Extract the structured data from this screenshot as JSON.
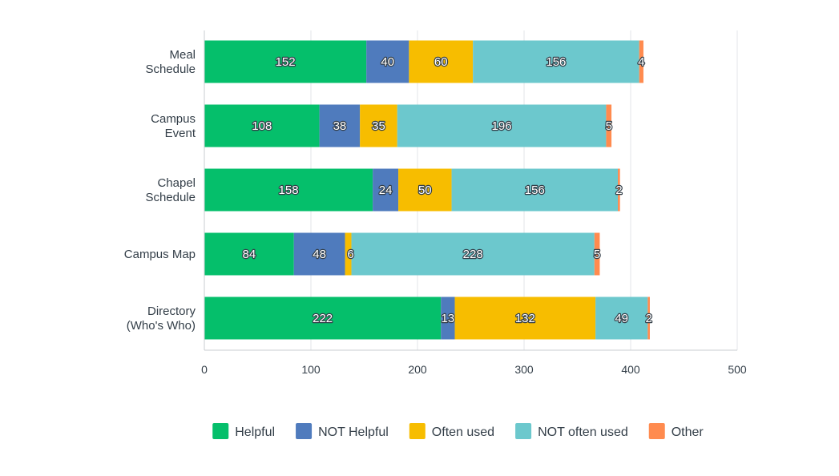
{
  "chart_data": {
    "type": "bar",
    "orientation": "horizontal",
    "stacked": true,
    "categories": [
      [
        "Meal",
        "Schedule"
      ],
      [
        "Campus",
        "Event"
      ],
      [
        "Chapel",
        "Schedule"
      ],
      [
        "Campus Map"
      ],
      [
        "Directory",
        "(Who's Who)"
      ]
    ],
    "series": [
      {
        "name": "Helpful",
        "color": "#05bf6b",
        "values": [
          152,
          108,
          158,
          84,
          222
        ]
      },
      {
        "name": "NOT Helpful",
        "color": "#4f7bbd",
        "values": [
          40,
          38,
          24,
          48,
          13
        ]
      },
      {
        "name": "Often used",
        "color": "#f7bd00",
        "values": [
          60,
          35,
          50,
          6,
          132
        ]
      },
      {
        "name": "NOT often used",
        "color": "#6cc8cd",
        "values": [
          156,
          196,
          156,
          228,
          49
        ]
      },
      {
        "name": "Other",
        "color": "#ff8b4f",
        "values": [
          4,
          5,
          2,
          5,
          2
        ]
      }
    ],
    "data_labels": [
      [
        "152",
        "40",
        "60",
        "156",
        "4"
      ],
      [
        "108",
        "38",
        "35",
        "196",
        "5"
      ],
      [
        "158",
        "24",
        "50",
        "156",
        "2"
      ],
      [
        "84",
        "48",
        "",
        "228",
        "5"
      ],
      [
        "222",
        "13",
        "132",
        "49",
        "2"
      ]
    ],
    "extra_labels": [
      {
        "category_index": 3,
        "series_index": 2,
        "text": "6"
      }
    ],
    "xticks": [
      "0",
      "100",
      "200",
      "300",
      "400",
      "500"
    ],
    "xlim": [
      0,
      500
    ],
    "grid": "vertical",
    "legend": "bottom-center",
    "title": "",
    "xlabel": "",
    "ylabel": ""
  }
}
